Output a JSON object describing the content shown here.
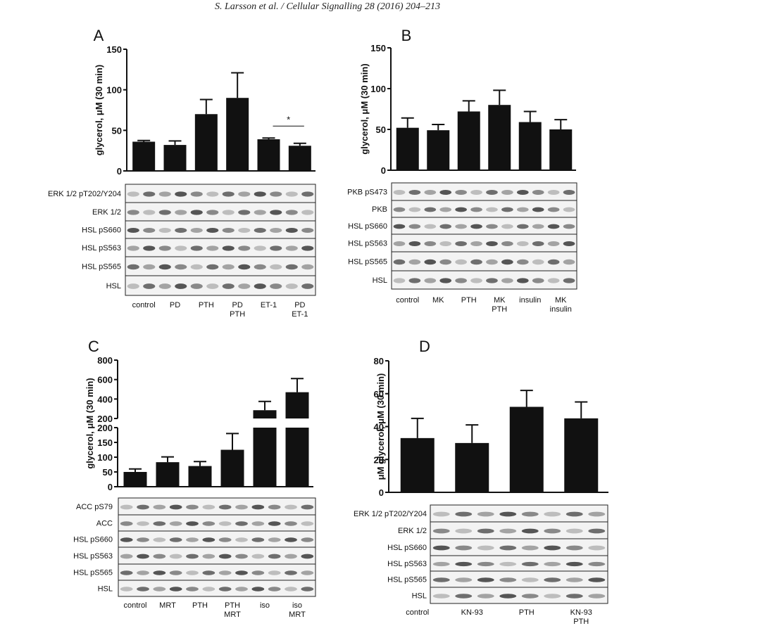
{
  "header": {
    "running_head": "S. Larsson et al. / Cellular Signalling 28 (2016) 204–213"
  },
  "colors": {
    "bar": "#111111",
    "axis": "#111111",
    "blot_bg": "#f3f3f3",
    "band": "#1a1a1a"
  },
  "chart_data": [
    {
      "panel": "A",
      "type": "bar",
      "ylabel": "glycerol, μM (30 min)",
      "ylim": [
        0,
        150
      ],
      "yticks": [
        0,
        50,
        100,
        150
      ],
      "categories": [
        "control",
        "PD",
        "PTH",
        "PD PTH",
        "ET-1",
        "PD ET-1"
      ],
      "values": [
        36,
        32,
        70,
        90,
        39,
        31
      ],
      "errors": [
        1.5,
        5,
        18,
        31,
        1.5,
        3
      ],
      "significance": [
        {
          "pair": [
            4,
            5
          ],
          "label": "*"
        }
      ],
      "blot_labels": [
        "ERK 1/2 pT202/Y204",
        "ERK 1/2",
        "HSL pS660",
        "HSL pS563",
        "HSL pS565",
        "HSL"
      ],
      "lane_labels": [
        [
          "control"
        ],
        [
          "PD"
        ],
        [
          "PTH"
        ],
        [
          "PD",
          "PTH"
        ],
        [
          "ET-1"
        ],
        [
          "PD",
          "ET-1"
        ]
      ]
    },
    {
      "panel": "B",
      "type": "bar",
      "ylabel": "glycerol, μM (30 min)",
      "ylim": [
        0,
        150
      ],
      "yticks": [
        0,
        50,
        100,
        150
      ],
      "categories": [
        "control",
        "MK",
        "PTH",
        "MK PTH",
        "insulin",
        "MK insulin"
      ],
      "values": [
        52,
        49,
        72,
        80,
        59,
        50
      ],
      "errors": [
        12,
        7,
        13,
        18,
        13,
        12
      ],
      "blot_labels": [
        "PKB pS473",
        "PKB",
        "HSL pS660",
        "HSL pS563",
        "HSL pS565",
        "HSL"
      ],
      "lane_labels": [
        [
          "control"
        ],
        [
          "MK"
        ],
        [
          "PTH"
        ],
        [
          "MK",
          "PTH"
        ],
        [
          "insulin"
        ],
        [
          "MK",
          "insulin"
        ]
      ]
    },
    {
      "panel": "C",
      "type": "bar",
      "ylabel": "glycerol, μM (30 min)",
      "broken_axis": true,
      "ylim_lower": [
        0,
        200
      ],
      "yticks_lower": [
        0,
        50,
        100,
        150,
        200
      ],
      "ylim_upper": [
        200,
        800
      ],
      "yticks_upper": [
        200,
        400,
        600,
        800
      ],
      "categories": [
        "control",
        "MRT",
        "PTH",
        "PTH MRT",
        "iso",
        "iso MRT"
      ],
      "values": [
        50,
        83,
        70,
        125,
        285,
        470
      ],
      "errors": [
        10,
        18,
        15,
        55,
        90,
        140
      ],
      "blot_labels": [
        "ACC pS79",
        "ACC",
        "HSL pS660",
        "HSL pS563",
        "HSL pS565",
        "HSL"
      ],
      "lane_labels": [
        [
          "control"
        ],
        [
          "MRT"
        ],
        [
          "PTH"
        ],
        [
          "PTH",
          "MRT"
        ],
        [
          "iso"
        ],
        [
          "iso",
          "MRT"
        ]
      ]
    },
    {
      "panel": "D",
      "type": "bar",
      "ylabel": "μM glycerol, μM (30 min)",
      "ylim": [
        0,
        80
      ],
      "yticks": [
        0,
        20,
        40,
        60,
        80
      ],
      "categories": [
        "control",
        "KN-93",
        "PTH",
        "KN-93 PTH"
      ],
      "values": [
        33,
        30,
        52,
        45
      ],
      "errors": [
        12,
        11,
        10,
        10
      ],
      "blot_labels": [
        "ERK 1/2 pT202/Y204",
        "ERK 1/2",
        "HSL pS660",
        "HSL pS563",
        "HSL pS565",
        "HSL"
      ],
      "lane_labels": [
        [
          "control"
        ],
        [
          "KN-93"
        ],
        [
          "PTH"
        ],
        [
          "KN-93",
          "PTH"
        ]
      ]
    }
  ]
}
